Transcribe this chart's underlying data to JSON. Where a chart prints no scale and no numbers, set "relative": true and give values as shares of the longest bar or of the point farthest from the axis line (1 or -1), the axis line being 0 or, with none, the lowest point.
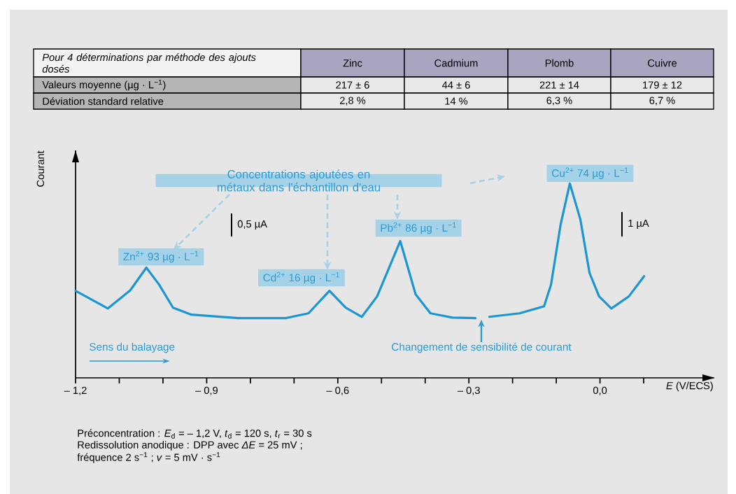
{
  "chart_data": [
    {
      "type": "other",
      "title": "Pour 4 déterminations par méthode des ajouts dosés",
      "categories": [
        "Zinc",
        "Cadmium",
        "Plomb",
        "Cuivre"
      ],
      "y_categories": [
        "Valeurs moyenne (µg · L$^{−1}$)",
        "Déviation standard relative"
      ],
      "cell_labels": [
        [
          "217 ± 6",
          "44 ± 6",
          "221 ± 14",
          "179 ± 12"
        ],
        [
          "2,8 %",
          "14 %",
          "6,3 %",
          "6,7 %"
        ]
      ]
    },
    {
      "type": "line",
      "relative": true,
      "xlabel": "*E* (V/ECS)",
      "ylabel": "Courant",
      "color": "#1a96d4",
      "xlim": [
        -1.2,
        0.26
      ],
      "xticks": [
        {
          "value": -1.2,
          "label": "– 1,2"
        },
        {
          "value": -1.1,
          "label": null
        },
        {
          "value": -1.0,
          "label": null
        },
        {
          "value": -0.9,
          "label": "– 0,9"
        },
        {
          "value": -0.8,
          "label": null
        },
        {
          "value": -0.7,
          "label": null
        },
        {
          "value": -0.6,
          "label": "– 0,6"
        },
        {
          "value": -0.5,
          "label": null
        },
        {
          "value": -0.4,
          "label": null
        },
        {
          "value": -0.3,
          "label": "– 0,3"
        },
        {
          "value": -0.2,
          "label": null
        },
        {
          "value": -0.1,
          "label": null
        },
        {
          "value": 0.0,
          "label": "0,0"
        },
        {
          "value": 0.1,
          "label": null
        }
      ],
      "x": [
        -1.2,
        -1.126,
        -1.075,
        -1.038,
        -1.009,
        -0.977,
        -0.935,
        -0.828,
        -0.72,
        -0.667,
        -0.619,
        -0.582,
        -0.545,
        -0.51,
        -0.457,
        -0.422,
        -0.388,
        -0.338,
        -0.285,
        -0.27,
        -0.253,
        -0.184,
        -0.128,
        -0.112,
        -0.09,
        -0.069,
        -0.045,
        -0.024,
        -0.002,
        0.026,
        0.066,
        0.101
      ],
      "values": [
        0.448,
        0.357,
        0.45,
        0.567,
        0.48,
        0.361,
        0.325,
        0.307,
        0.307,
        0.332,
        0.448,
        0.361,
        0.314,
        0.419,
        0.704,
        0.43,
        0.332,
        0.31,
        0.307,
        null,
        0.314,
        0.332,
        0.368,
        0.48,
        0.79,
        1.0,
        0.816,
        0.54,
        0.419,
        0.357,
        0.419,
        0.523
      ],
      "annotations": [
        "Concentrations ajoutées en métaux dans l'échantillon d'eau",
        {
          "text": "Zn$^{2+}$ 93 µg · L$^{−1}$",
          "x": -1.038,
          "y": 0.567
        },
        {
          "text": "Cd$^{2+}$ 16 µg · L$^{−1}$",
          "x": -0.619,
          "y": 0.448
        },
        {
          "text": "Pb$^{2+}$ 86 µg · L$^{−1}$",
          "x": -0.457,
          "y": 0.704
        },
        {
          "text": "Cu$^{2+}$ 74 µg · L$^{−1}$",
          "x": -0.069,
          "y": 1.0
        },
        "0,5 µA",
        "1 µA",
        "Sens du balayage",
        "Changement de sensibilité de courant",
        "Préconcentration : *E*$_{d}$ = – 1,2 V, *t*$_{d}$ = 120 s, *t*$_{r}$ = 30 s",
        "Redissolution anodique : DPP avec *ΔE* = 25 mV ;",
        "fréquence 2 s$^{−1}$ ; *v* = 5 mV · s$^{−1}$"
      ]
    }
  ]
}
